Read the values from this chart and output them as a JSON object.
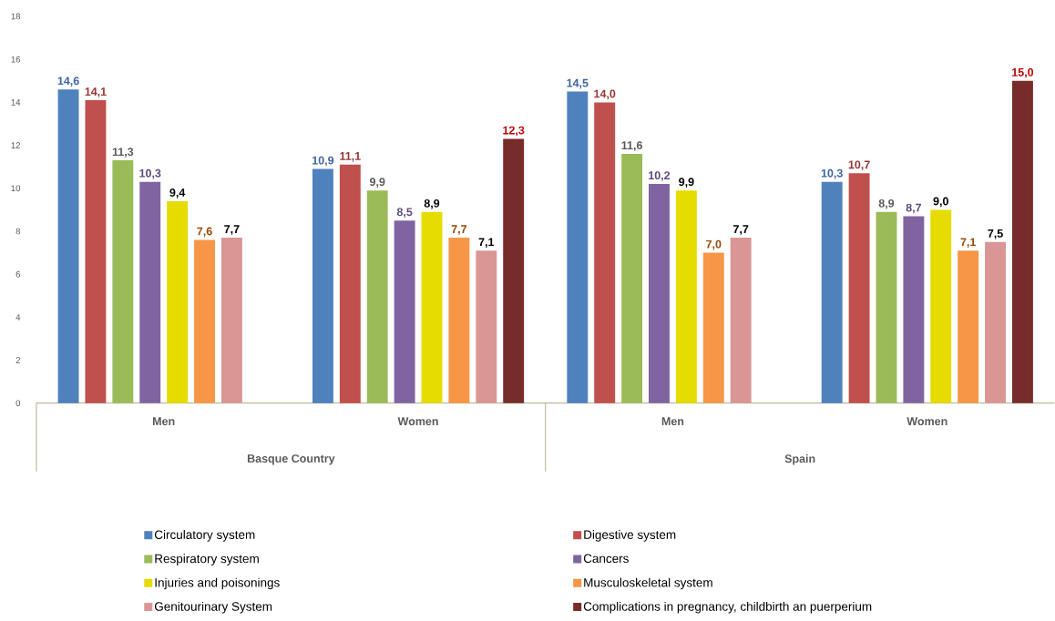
{
  "chart_data": {
    "type": "bar",
    "categories": [
      "Men",
      "Women",
      "Men",
      "Women"
    ],
    "annotations": [
      "Basque Country",
      "Spain"
    ],
    "ylim": [
      0,
      18
    ],
    "yticks": [
      0,
      2,
      4,
      6,
      8,
      10,
      12,
      14,
      16,
      18
    ],
    "legend": "bottom",
    "grid": false,
    "series": [
      {
        "name": "Circulatory system",
        "color": "#4f81bd",
        "values": [
          14.6,
          10.9,
          14.5,
          10.3
        ],
        "value_labels": [
          "14,6",
          "10,9",
          "14,5",
          "10,3"
        ]
      },
      {
        "name": "Digestive system",
        "color": "#c0504d",
        "values": [
          14.1,
          11.1,
          14.0,
          10.7
        ],
        "value_labels": [
          "14,1",
          "11,1",
          "14,0",
          "10,7"
        ]
      },
      {
        "name": "Respiratory system",
        "color": "#9bbb59",
        "values": [
          11.3,
          9.9,
          11.6,
          8.9
        ],
        "value_labels": [
          "11,3",
          "9,9",
          "11,6",
          "8,9"
        ]
      },
      {
        "name": "Cancers",
        "color": "#8064a2",
        "values": [
          10.3,
          8.5,
          10.2,
          8.7
        ],
        "value_labels": [
          "10,3",
          "8,5",
          "10,2",
          "8,7"
        ]
      },
      {
        "name": "Injuries and poisonings",
        "color": "#e6dc00",
        "values": [
          9.4,
          8.9,
          9.9,
          9.0
        ],
        "value_labels": [
          "9,4",
          "8,9",
          "9,9",
          "9,0"
        ]
      },
      {
        "name": "Musculoskeletal system",
        "color": "#f79646",
        "values": [
          7.6,
          7.7,
          7.0,
          7.1
        ],
        "value_labels": [
          "7,6",
          "7,7",
          "7,0",
          "7,1"
        ]
      },
      {
        "name": "Genitourinary System",
        "color": "#d99694",
        "values": [
          7.7,
          7.1,
          7.7,
          7.5
        ],
        "value_labels": [
          "7,7",
          "7,1",
          "7,7",
          "7,5"
        ]
      },
      {
        "name": "Complications in pregnancy, childbirth an puerperium",
        "color": "#772c2a",
        "values": [
          null,
          12.3,
          null,
          15.0
        ],
        "value_labels": [
          null,
          "12,3",
          null,
          "15,0"
        ]
      }
    ]
  }
}
